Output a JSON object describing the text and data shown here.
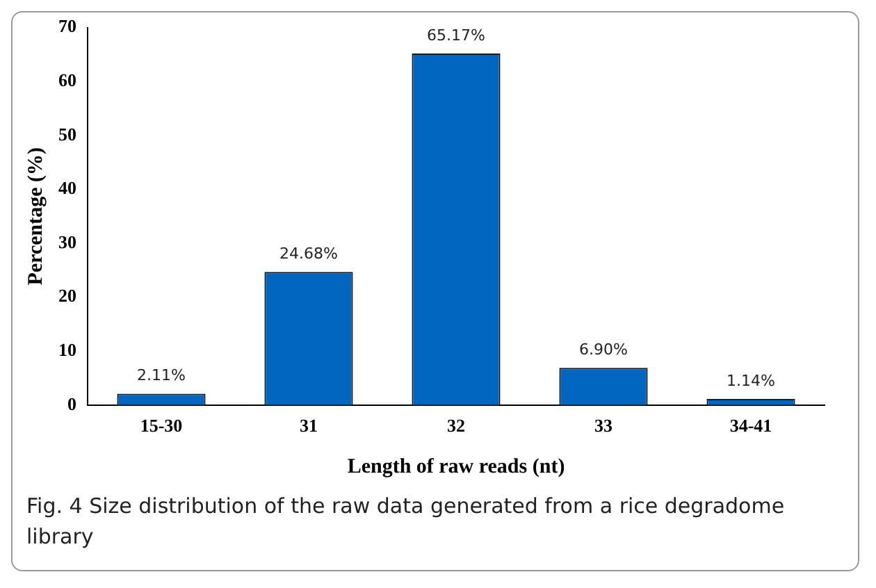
{
  "chart_data": {
    "type": "bar",
    "xlabel": "Length of raw reads (nt)",
    "ylabel": "Percentage (%)",
    "categories": [
      "15-30",
      "31",
      "32",
      "33",
      "34-41"
    ],
    "values": [
      2.11,
      24.68,
      65.17,
      6.9,
      1.14
    ],
    "value_labels": [
      "2.11%",
      "24.68%",
      "65.17%",
      "6.90%",
      "1.14%"
    ],
    "color": "#0066c0",
    "ylim": [
      0,
      70
    ],
    "yticks": [
      0,
      10,
      20,
      30,
      40,
      50,
      60,
      70
    ],
    "grid": false,
    "legend": false,
    "annotations": [
      "Fig. 4  Size distribution of the raw data generated from a rice degradome library"
    ]
  }
}
